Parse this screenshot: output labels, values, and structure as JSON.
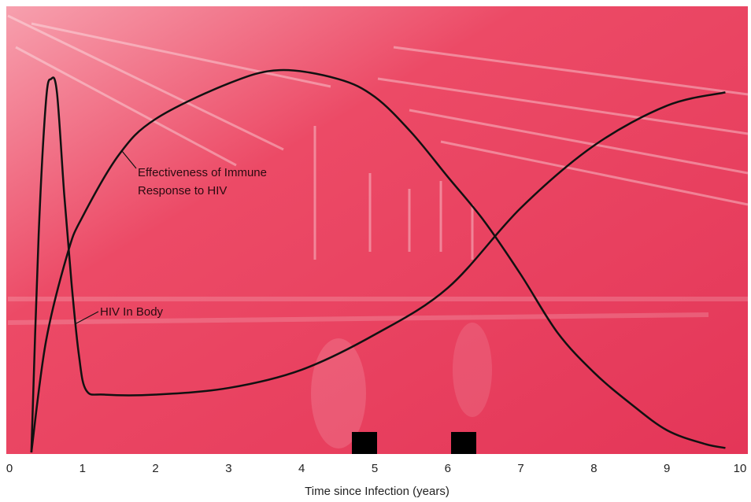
{
  "chart_data": {
    "type": "line",
    "xlabel": "Time since Infection (years)",
    "xlim": [
      0,
      10
    ],
    "xticks": [
      0,
      1,
      2,
      3,
      4,
      5,
      6,
      7,
      8,
      9,
      10
    ],
    "ylim": [
      0,
      100
    ],
    "series": [
      {
        "name": "HIV In Body",
        "color": "#111111",
        "x": [
          0.3,
          0.4,
          0.5,
          0.57,
          0.65,
          0.75,
          0.85,
          0.95,
          1.05,
          1.3,
          2,
          3,
          4,
          5,
          6,
          7,
          8,
          9,
          9.8
        ],
        "values": [
          0,
          49,
          79,
          84,
          81,
          58,
          38,
          22,
          14,
          13,
          13,
          14.5,
          18.6,
          26.5,
          37,
          55,
          69,
          78,
          81
        ]
      },
      {
        "name": "Effectiveness of Immune Response to HIV",
        "color": "#111111",
        "x": [
          0.3,
          0.5,
          0.8,
          1,
          1.5,
          2,
          3,
          3.7,
          4.5,
          5,
          5.5,
          6,
          6.5,
          7,
          7.5,
          8,
          8.5,
          9,
          9.5,
          9.8
        ],
        "values": [
          0,
          25,
          45,
          53,
          67,
          75,
          83,
          86,
          84,
          80,
          72,
          62,
          52,
          40,
          27,
          18,
          11,
          5,
          2,
          1
        ]
      }
    ]
  }
}
